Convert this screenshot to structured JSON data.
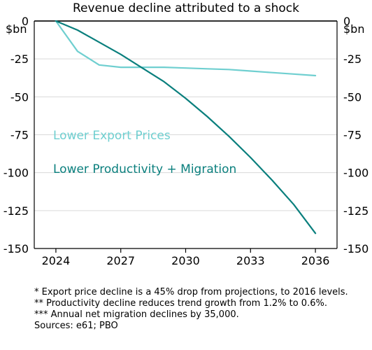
{
  "chart_data": {
    "type": "line",
    "title": "Revenue decline attributed to a shock",
    "ylabel_left": "$bn",
    "ylabel_right": "$bn",
    "ylim": [
      -150,
      0
    ],
    "yticks": [
      0,
      -25,
      -50,
      -75,
      -100,
      -125,
      -150
    ],
    "ytick_labels": [
      "0",
      "-25",
      "-50",
      "-75",
      "-100",
      "-125",
      "-150"
    ],
    "xlim": [
      2023,
      2037
    ],
    "xticks": [
      2024,
      2027,
      2030,
      2033,
      2036
    ],
    "xtick_labels": [
      "2024",
      "2027",
      "2030",
      "2033",
      "2036"
    ],
    "grid": true,
    "zero_line": true,
    "series": [
      {
        "name": "Lower Export Prices",
        "color": "#6fcfd0",
        "x": [
          2024,
          2025,
          2026,
          2027,
          2028,
          2029,
          2030,
          2031,
          2032,
          2033,
          2034,
          2035,
          2036
        ],
        "y": [
          0,
          -20,
          -29,
          -30.5,
          -30.5,
          -30.5,
          -31,
          -31.5,
          -32,
          -33,
          -34,
          -35,
          -36
        ]
      },
      {
        "name": "Lower Productivity + Migration",
        "color": "#0a7f7d",
        "x": [
          2024,
          2025,
          2026,
          2027,
          2028,
          2029,
          2030,
          2031,
          2032,
          2033,
          2034,
          2035,
          2036
        ],
        "y": [
          0,
          -6,
          -14,
          -22,
          -31,
          -40,
          -51,
          -63,
          -76,
          -90,
          -105,
          -121,
          -140
        ]
      }
    ]
  },
  "notes": [
    "* Export price decline is a 45% drop from projections, to 2016 levels.",
    "** Productivity decline reduces trend growth from 1.2% to 0.6%.",
    "*** Annual net migration declines by 35,000.",
    "Sources: e61; PBO"
  ]
}
